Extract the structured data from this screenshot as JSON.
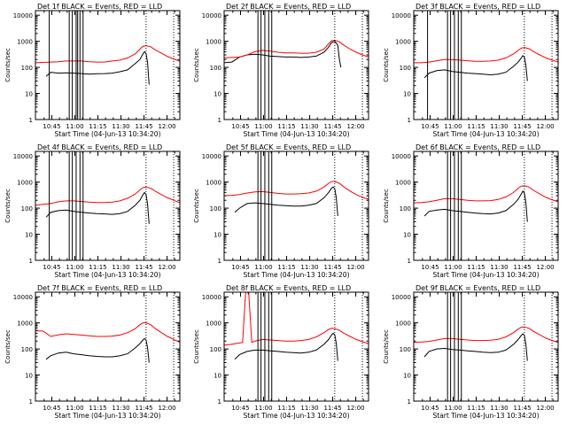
{
  "colors": {
    "events": "#000000",
    "lld": "#ff0000",
    "axes": "#000000"
  },
  "x_tick_labels": [
    "10:45",
    "11:00",
    "11:15",
    "11:30",
    "11:45",
    "12:00"
  ],
  "y_tick_labels": [
    "1",
    "10",
    "100",
    "1000",
    "10000"
  ],
  "chart_data": [
    {
      "type": "line",
      "title": "Det 1f BLACK = Events, RED = LLD",
      "xlabel": "Start Time (04-Jun-13 10:34:20)",
      "ylabel": "Counts/sec",
      "y_scale": "log",
      "ylim": [
        1,
        15000
      ],
      "xlim_minutes_after_10_34_20": [
        0,
        94
      ],
      "series": [
        {
          "name": "Events",
          "color": "#000000",
          "minutes": [
            7,
            10,
            15,
            20,
            25,
            30,
            35,
            40,
            45,
            50,
            55,
            60,
            65,
            68,
            70,
            71,
            72,
            73,
            74
          ],
          "values": [
            45,
            65,
            60,
            62,
            60,
            58,
            55,
            57,
            58,
            60,
            68,
            80,
            140,
            200,
            330,
            400,
            340,
            150,
            22
          ]
        },
        {
          "name": "LLD",
          "color": "#ff0000",
          "minutes": [
            0,
            5,
            10,
            15,
            20,
            25,
            30,
            35,
            40,
            45,
            50,
            55,
            60,
            65,
            68,
            70,
            72,
            75,
            78,
            82,
            86,
            90,
            94
          ],
          "values": [
            150,
            155,
            160,
            165,
            175,
            175,
            175,
            165,
            160,
            160,
            175,
            190,
            230,
            330,
            500,
            650,
            680,
            620,
            470,
            350,
            260,
            210,
            170
          ]
        }
      ],
      "vertical_lines_minutes": [
        9,
        22,
        24,
        26.5,
        27.5,
        29,
        31
      ],
      "dotted_lines_minutes": [
        72,
        90
      ]
    },
    {
      "type": "line",
      "title": "Det 2f BLACK = Events, RED = LLD",
      "xlabel": "Start Time (04-Jun-13 10:34:20)",
      "ylabel": "Counts/sec",
      "y_scale": "log",
      "ylim": [
        1,
        15000
      ],
      "xlim_minutes_after_10_34_20": [
        0,
        94
      ],
      "series": [
        {
          "name": "Events",
          "color": "#000000",
          "minutes": [
            0,
            5,
            10,
            15,
            20,
            25,
            30,
            35,
            40,
            45,
            50,
            55,
            60,
            65,
            68,
            70,
            72,
            74,
            75,
            76
          ],
          "values": [
            150,
            160,
            250,
            300,
            320,
            300,
            270,
            260,
            250,
            250,
            240,
            250,
            270,
            380,
            600,
            900,
            1000,
            700,
            200,
            100
          ]
        },
        {
          "name": "LLD",
          "color": "#ff0000",
          "minutes": [
            0,
            5,
            10,
            15,
            20,
            25,
            30,
            35,
            40,
            45,
            50,
            55,
            60,
            65,
            68,
            70,
            72,
            75,
            78,
            82,
            86,
            90,
            94
          ],
          "values": [
            230,
            240,
            250,
            300,
            400,
            450,
            420,
            380,
            360,
            360,
            350,
            350,
            380,
            500,
            800,
            1050,
            1100,
            950,
            700,
            500,
            380,
            300,
            250
          ]
        }
      ],
      "vertical_lines_minutes": [
        22,
        24,
        26.5,
        29,
        31
      ],
      "dotted_lines_minutes": [
        72,
        90
      ]
    },
    {
      "type": "line",
      "title": "Det 3f BLACK = Events, RED = LLD",
      "xlabel": "Start Time (04-Jun-13 10:34:20)",
      "ylabel": "Counts/sec",
      "y_scale": "log",
      "ylim": [
        1,
        15000
      ],
      "xlim_minutes_after_10_34_20": [
        0,
        94
      ],
      "series": [
        {
          "name": "Events",
          "color": "#000000",
          "minutes": [
            7,
            10,
            15,
            20,
            25,
            30,
            35,
            40,
            45,
            50,
            55,
            60,
            65,
            68,
            70,
            71,
            72,
            73,
            74
          ],
          "values": [
            40,
            60,
            75,
            80,
            70,
            65,
            60,
            58,
            55,
            52,
            55,
            65,
            110,
            160,
            230,
            280,
            250,
            120,
            30
          ]
        },
        {
          "name": "LLD",
          "color": "#ff0000",
          "minutes": [
            0,
            5,
            10,
            15,
            20,
            25,
            30,
            35,
            40,
            45,
            50,
            55,
            60,
            65,
            68,
            70,
            72,
            75,
            78,
            82,
            86,
            90,
            94
          ],
          "values": [
            150,
            150,
            160,
            180,
            200,
            200,
            190,
            180,
            170,
            170,
            175,
            190,
            230,
            330,
            450,
            550,
            580,
            520,
            400,
            300,
            230,
            190,
            160
          ]
        }
      ],
      "vertical_lines_minutes": [
        9,
        22,
        24,
        26.5,
        29,
        31
      ],
      "dotted_lines_minutes": [
        72,
        90
      ]
    },
    {
      "type": "line",
      "title": "Det 4f BLACK = Events, RED = LLD",
      "xlabel": "Start Time (04-Jun-13 10:34:20)",
      "ylabel": "Counts/sec",
      "y_scale": "log",
      "ylim": [
        1,
        15000
      ],
      "xlim_minutes_after_10_34_20": [
        0,
        94
      ],
      "series": [
        {
          "name": "Events",
          "color": "#000000",
          "minutes": [
            7,
            10,
            15,
            20,
            25,
            30,
            35,
            40,
            45,
            50,
            55,
            60,
            65,
            68,
            70,
            71,
            72,
            73,
            74
          ],
          "values": [
            45,
            70,
            80,
            85,
            75,
            70,
            65,
            62,
            60,
            58,
            62,
            75,
            130,
            200,
            330,
            400,
            330,
            140,
            25
          ]
        },
        {
          "name": "LLD",
          "color": "#ff0000",
          "minutes": [
            0,
            5,
            10,
            15,
            20,
            25,
            30,
            35,
            40,
            45,
            50,
            55,
            60,
            65,
            68,
            70,
            72,
            75,
            78,
            82,
            86,
            90,
            94
          ],
          "values": [
            130,
            140,
            150,
            175,
            190,
            190,
            180,
            170,
            165,
            165,
            170,
            190,
            240,
            350,
            500,
            620,
            650,
            580,
            450,
            330,
            250,
            200,
            160
          ]
        }
      ],
      "vertical_lines_minutes": [
        9,
        22,
        24,
        26.5,
        29,
        31
      ],
      "dotted_lines_minutes": [
        72,
        90
      ]
    },
    {
      "type": "line",
      "title": "Det 5f BLACK = Events, RED = LLD",
      "xlabel": "Start Time (04-Jun-13 10:34:20)",
      "ylabel": "Counts/sec",
      "y_scale": "log",
      "ylim": [
        1,
        15000
      ],
      "xlim_minutes_after_10_34_20": [
        0,
        94
      ],
      "series": [
        {
          "name": "Events",
          "color": "#000000",
          "minutes": [
            7,
            10,
            15,
            20,
            25,
            30,
            35,
            40,
            45,
            50,
            55,
            60,
            65,
            68,
            70,
            71,
            72,
            73,
            74
          ],
          "values": [
            70,
            100,
            150,
            160,
            150,
            140,
            130,
            125,
            120,
            120,
            130,
            150,
            250,
            400,
            600,
            650,
            550,
            250,
            50
          ]
        },
        {
          "name": "LLD",
          "color": "#ff0000",
          "minutes": [
            0,
            5,
            10,
            15,
            20,
            25,
            30,
            35,
            40,
            45,
            50,
            55,
            60,
            65,
            68,
            70,
            72,
            75,
            78,
            82,
            86,
            90,
            94
          ],
          "values": [
            300,
            310,
            330,
            380,
            420,
            430,
            400,
            370,
            350,
            350,
            360,
            380,
            450,
            650,
            900,
            1050,
            1050,
            900,
            650,
            450,
            330,
            260,
            220
          ]
        }
      ],
      "vertical_lines_minutes": [
        22,
        24,
        26.5,
        29,
        31
      ],
      "dotted_lines_minutes": [
        72,
        90
      ]
    },
    {
      "type": "line",
      "title": "Det 6f BLACK = Events, RED = LLD",
      "xlabel": "Start Time (04-Jun-13 10:34:20)",
      "ylabel": "Counts/sec",
      "y_scale": "log",
      "ylim": [
        1,
        15000
      ],
      "xlim_minutes_after_10_34_20": [
        0,
        94
      ],
      "series": [
        {
          "name": "Events",
          "color": "#000000",
          "minutes": [
            7,
            10,
            15,
            20,
            25,
            30,
            35,
            40,
            45,
            50,
            55,
            60,
            65,
            68,
            70,
            71,
            72,
            73,
            74
          ],
          "values": [
            50,
            75,
            85,
            90,
            80,
            75,
            70,
            65,
            62,
            60,
            65,
            80,
            140,
            220,
            350,
            450,
            380,
            160,
            30
          ]
        },
        {
          "name": "LLD",
          "color": "#ff0000",
          "minutes": [
            0,
            5,
            10,
            15,
            20,
            25,
            30,
            35,
            40,
            45,
            50,
            55,
            60,
            65,
            68,
            70,
            72,
            75,
            78,
            82,
            86,
            90,
            94
          ],
          "values": [
            160,
            165,
            175,
            200,
            230,
            230,
            215,
            200,
            190,
            190,
            195,
            215,
            270,
            400,
            580,
            700,
            720,
            640,
            480,
            350,
            260,
            210,
            175
          ]
        }
      ],
      "vertical_lines_minutes": [
        22,
        24,
        26.5,
        29,
        31
      ],
      "dotted_lines_minutes": [
        72,
        90
      ]
    },
    {
      "type": "line",
      "title": "Det 7f BLACK = Events, RED = LLD",
      "xlabel": "Start Time (04-Jun-13 10:34:20)",
      "ylabel": "Counts/sec",
      "y_scale": "log",
      "ylim": [
        1,
        15000
      ],
      "xlim_minutes_after_10_34_20": [
        0,
        94
      ],
      "series": [
        {
          "name": "Events",
          "color": "#000000",
          "minutes": [
            7,
            10,
            15,
            20,
            25,
            30,
            35,
            40,
            45,
            50,
            55,
            60,
            65,
            68,
            70,
            71,
            72,
            73,
            74
          ],
          "values": [
            40,
            55,
            70,
            75,
            65,
            60,
            55,
            52,
            50,
            50,
            55,
            65,
            110,
            160,
            220,
            250,
            220,
            110,
            30
          ]
        },
        {
          "name": "LLD",
          "color": "#ff0000",
          "minutes": [
            0,
            5,
            10,
            15,
            20,
            25,
            30,
            35,
            40,
            45,
            50,
            55,
            60,
            65,
            68,
            70,
            72,
            75,
            78,
            82,
            86,
            90,
            94
          ],
          "values": [
            500,
            480,
            300,
            350,
            380,
            360,
            340,
            320,
            300,
            300,
            310,
            340,
            420,
            600,
            850,
            1000,
            1000,
            850,
            600,
            420,
            300,
            230,
            180
          ]
        }
      ],
      "vertical_lines_minutes": [],
      "dotted_lines_minutes": [
        72,
        90
      ]
    },
    {
      "type": "line",
      "title": "Det 8f BLACK = Events, RED = LLD",
      "xlabel": "Start Time (04-Jun-13 10:34:20)",
      "ylabel": "Counts/sec",
      "y_scale": "log",
      "ylim": [
        1,
        15000
      ],
      "xlim_minutes_after_10_34_20": [
        0,
        94
      ],
      "series": [
        {
          "name": "Events",
          "color": "#000000",
          "minutes": [
            7,
            10,
            15,
            20,
            25,
            30,
            35,
            40,
            45,
            50,
            55,
            60,
            65,
            68,
            70,
            71,
            72,
            73,
            74
          ],
          "values": [
            40,
            60,
            80,
            90,
            90,
            85,
            80,
            75,
            72,
            70,
            75,
            90,
            150,
            230,
            350,
            400,
            350,
            160,
            35
          ]
        },
        {
          "name": "LLD",
          "color": "#ff0000",
          "minutes": [
            0,
            5,
            10,
            12,
            14,
            16,
            18,
            20,
            25,
            30,
            35,
            40,
            45,
            50,
            55,
            60,
            65,
            68,
            70,
            72,
            75,
            78,
            82,
            86,
            90,
            94
          ],
          "values": [
            140,
            150,
            170,
            175,
            15000,
            15000,
            180,
            200,
            230,
            220,
            210,
            200,
            200,
            210,
            230,
            290,
            420,
            560,
            620,
            600,
            520,
            400,
            300,
            230,
            190,
            160
          ]
        }
      ],
      "vertical_lines_minutes": [
        22,
        24,
        26.5,
        29,
        31
      ],
      "dotted_lines_minutes": [
        72,
        90
      ]
    },
    {
      "type": "line",
      "title": "Det 9f BLACK = Events, RED = LLD",
      "xlabel": "Start Time (04-Jun-13 10:34:20)",
      "ylabel": "Counts/sec",
      "y_scale": "log",
      "ylim": [
        1,
        15000
      ],
      "xlim_minutes_after_10_34_20": [
        0,
        94
      ],
      "series": [
        {
          "name": "Events",
          "color": "#000000",
          "minutes": [
            7,
            10,
            15,
            20,
            25,
            30,
            35,
            40,
            45,
            50,
            55,
            60,
            65,
            68,
            70,
            71,
            72,
            73,
            74
          ],
          "values": [
            50,
            80,
            100,
            105,
            95,
            90,
            85,
            80,
            75,
            72,
            75,
            90,
            150,
            230,
            330,
            380,
            330,
            150,
            35
          ]
        },
        {
          "name": "LLD",
          "color": "#ff0000",
          "minutes": [
            0,
            5,
            10,
            15,
            20,
            25,
            30,
            35,
            40,
            45,
            50,
            55,
            60,
            65,
            68,
            70,
            72,
            75,
            78,
            82,
            86,
            90,
            94
          ],
          "values": [
            180,
            185,
            195,
            220,
            250,
            250,
            235,
            220,
            210,
            210,
            215,
            235,
            290,
            420,
            580,
            680,
            700,
            620,
            470,
            350,
            260,
            210,
            180
          ]
        }
      ],
      "vertical_lines_minutes": [
        22,
        24,
        26.5,
        29,
        31
      ],
      "dotted_lines_minutes": [
        72,
        90
      ]
    }
  ]
}
